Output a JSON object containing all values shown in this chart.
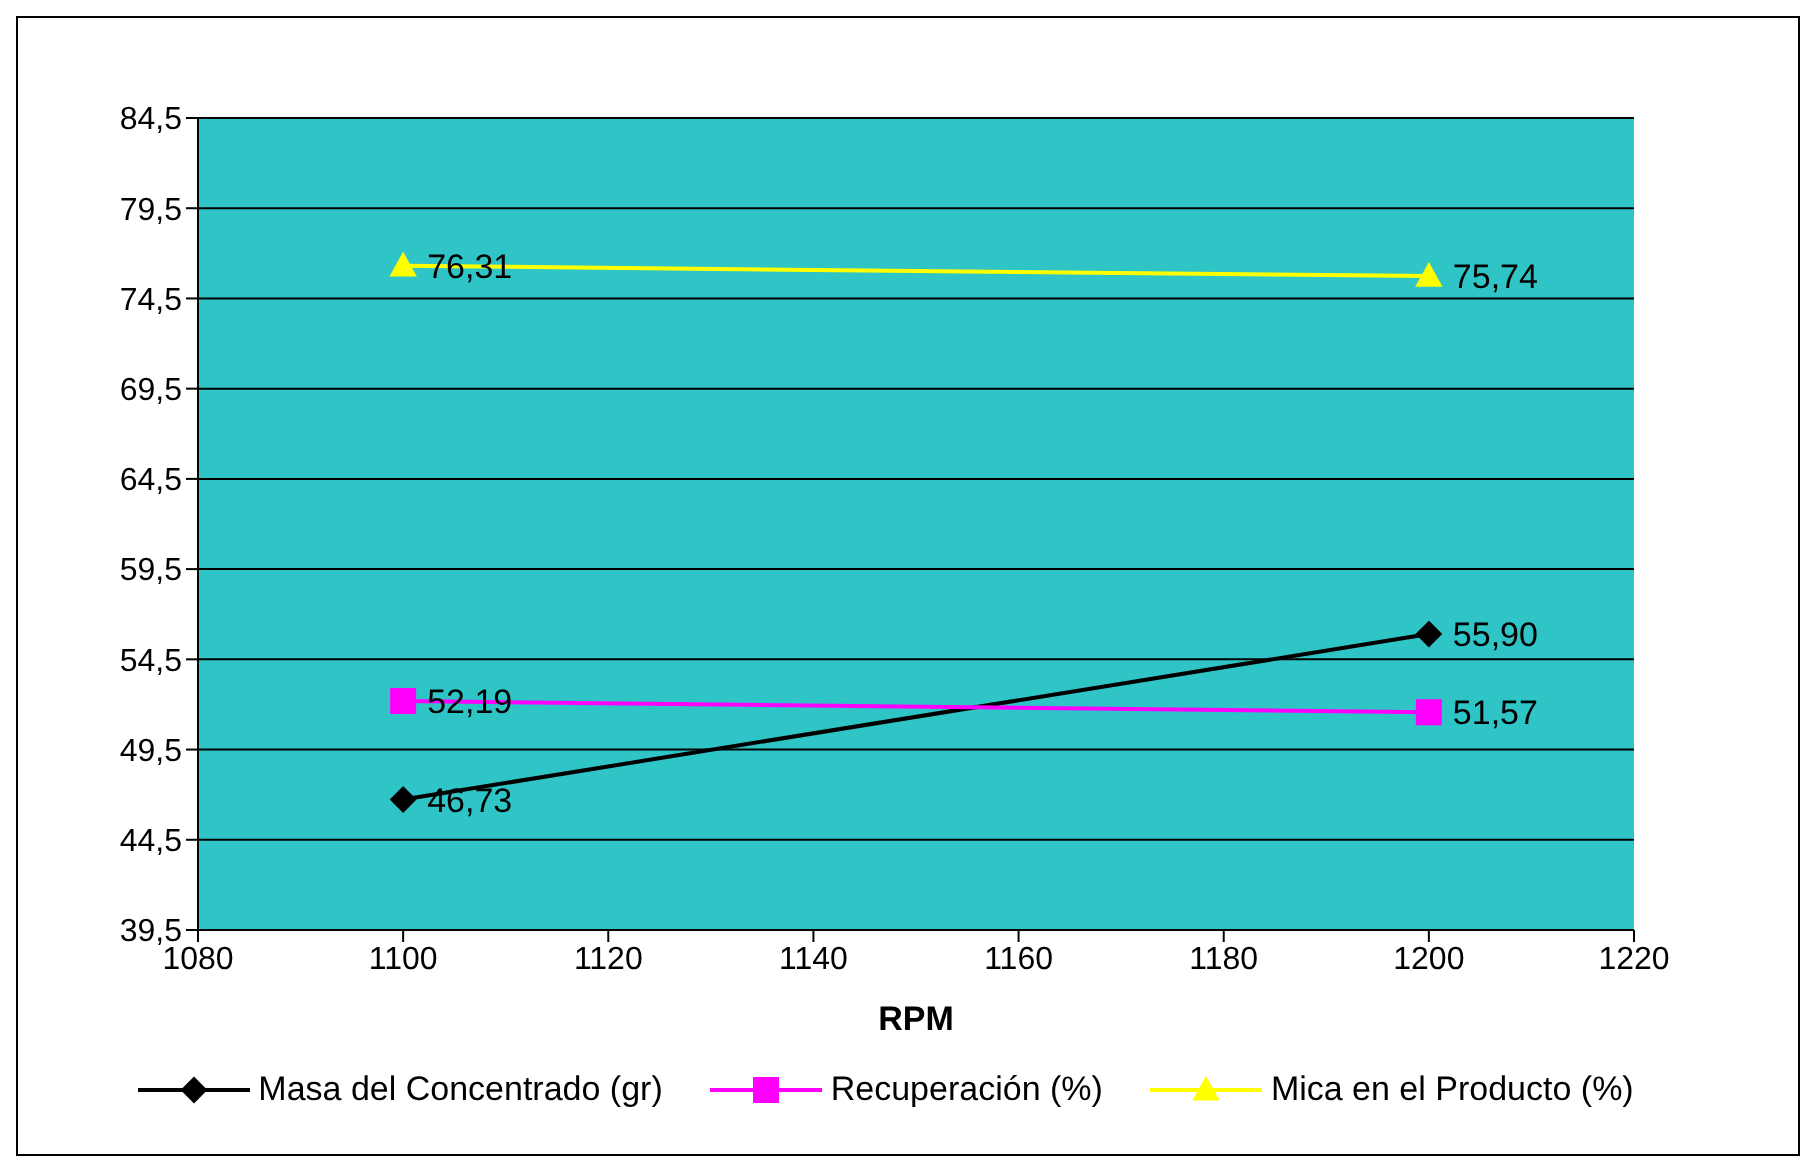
{
  "chart_data": {
    "type": "line",
    "xlabel": "RPM",
    "x": [
      1100,
      1200
    ],
    "xlim": [
      1080,
      1220
    ],
    "xticks": [
      1080,
      1100,
      1120,
      1140,
      1160,
      1180,
      1200,
      1220
    ],
    "ylim": [
      39.5,
      84.5
    ],
    "yticks": [
      {
        "value": 39.5,
        "label": "39,5"
      },
      {
        "value": 44.5,
        "label": "44,5"
      },
      {
        "value": 49.5,
        "label": "49,5"
      },
      {
        "value": 54.5,
        "label": "54,5"
      },
      {
        "value": 59.5,
        "label": "59,5"
      },
      {
        "value": 64.5,
        "label": "64,5"
      },
      {
        "value": 69.5,
        "label": "69,5"
      },
      {
        "value": 74.5,
        "label": "74,5"
      },
      {
        "value": 79.5,
        "label": "79,5"
      },
      {
        "value": 84.5,
        "label": "84,5"
      }
    ],
    "grid": "y",
    "legend": "bottom",
    "series": [
      {
        "name": "Masa del Concentrado (gr)",
        "color": "#000000",
        "marker": "diamond",
        "values": [
          46.73,
          55.9
        ],
        "value_labels": [
          "46,73",
          "55,90"
        ]
      },
      {
        "name": "Recuperación (%)",
        "color": "#ff00ff",
        "marker": "square",
        "values": [
          52.19,
          51.57
        ],
        "value_labels": [
          "52,19",
          "51,57"
        ]
      },
      {
        "name": "Mica en el Producto (%)",
        "color": "#ffff00",
        "marker": "triangle",
        "values": [
          76.31,
          75.74
        ],
        "value_labels": [
          "76,31",
          "75,74"
        ]
      }
    ]
  }
}
